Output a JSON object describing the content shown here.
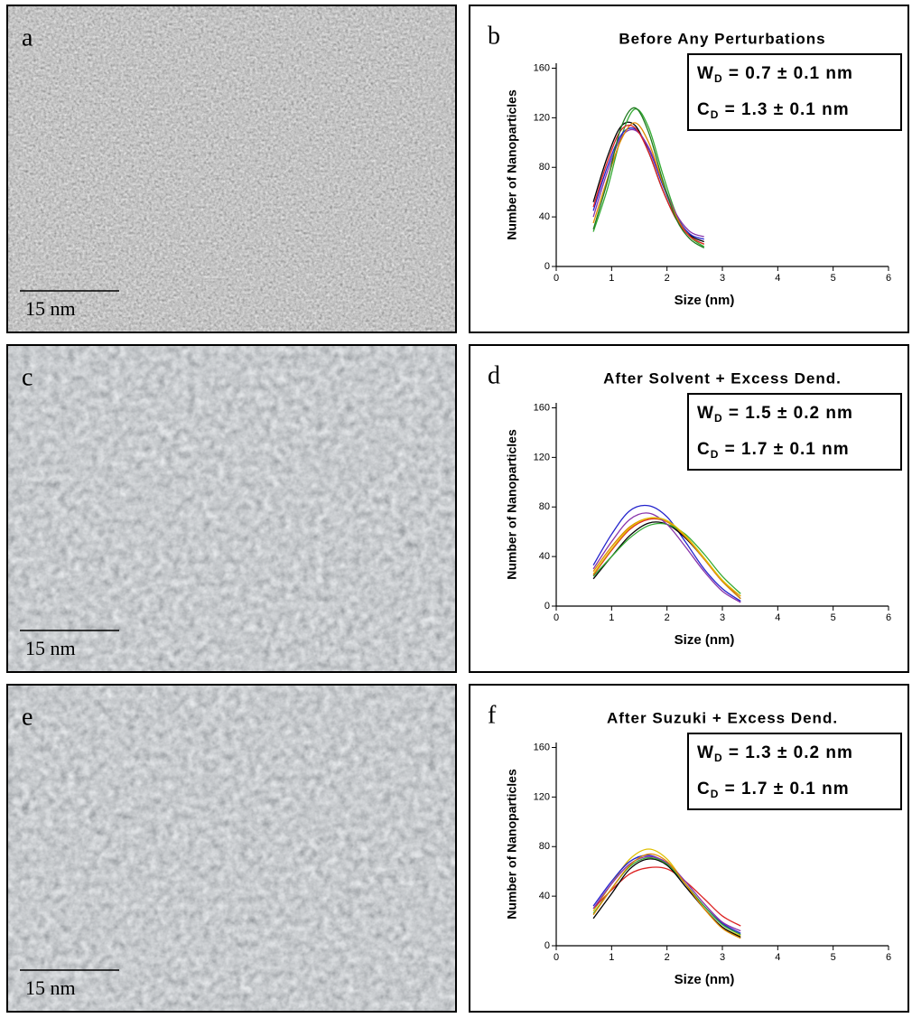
{
  "images": [
    {
      "label": "a",
      "scale_bar": "15 nm"
    },
    {
      "label": "c",
      "scale_bar": "15 nm"
    },
    {
      "label": "e",
      "scale_bar": "15 nm"
    }
  ],
  "chart_data": [
    {
      "type": "line",
      "panel_label": "b",
      "title": "Before Any Perturbations",
      "x_label": "Size (nm)",
      "y_label": "Number of Nanoparticles",
      "annotation": [
        {
          "main": "W",
          "sub": "D",
          "rest": " = 0.7 ± 0.1 nm"
        },
        {
          "main": "C",
          "sub": "D",
          "rest": " = 1.3 ± 0.1 nm"
        }
      ],
      "xlim": [
        0,
        6
      ],
      "xticks": [
        0,
        1,
        2,
        3,
        4,
        5,
        6
      ],
      "ylim": [
        0,
        164
      ],
      "yticks": [
        0,
        40,
        80,
        120,
        160
      ],
      "x": [
        0.67,
        0.92,
        1.17,
        1.42,
        1.67,
        1.92,
        2.17,
        2.42,
        2.67
      ],
      "series": [
        {
          "color": "#000000",
          "values": [
            52,
            88,
            113,
            114,
            92,
            62,
            38,
            25,
            20
          ]
        },
        {
          "color": "#33aa33",
          "values": [
            28,
            62,
            104,
            127,
            112,
            75,
            42,
            24,
            16
          ]
        },
        {
          "color": "#2222cc",
          "values": [
            45,
            80,
            106,
            111,
            95,
            66,
            40,
            26,
            22
          ]
        },
        {
          "color": "#8833aa",
          "values": [
            40,
            76,
            104,
            110,
            96,
            68,
            42,
            28,
            24
          ]
        },
        {
          "color": "#e08a00",
          "values": [
            35,
            70,
            102,
            116,
            100,
            68,
            40,
            24,
            18
          ]
        },
        {
          "color": "#dd2222",
          "values": [
            48,
            84,
            110,
            112,
            92,
            62,
            38,
            24,
            18
          ]
        },
        {
          "color": "#1f7a1f",
          "values": [
            30,
            68,
            112,
            128,
            108,
            70,
            38,
            22,
            15
          ]
        }
      ]
    },
    {
      "type": "line",
      "panel_label": "d",
      "title": "After Solvent + Excess Dend.",
      "x_label": "Size (nm)",
      "y_label": "Number of Nanoparticles",
      "annotation": [
        {
          "main": "W",
          "sub": "D",
          "rest": " = 1.5 ± 0.2 nm"
        },
        {
          "main": "C",
          "sub": "D",
          "rest": " = 1.7 ± 0.1 nm"
        }
      ],
      "xlim": [
        0,
        6
      ],
      "xticks": [
        0,
        1,
        2,
        3,
        4,
        5,
        6
      ],
      "ylim": [
        0,
        164
      ],
      "yticks": [
        0,
        40,
        80,
        120,
        160
      ],
      "x": [
        0.67,
        1,
        1.33,
        1.67,
        2,
        2.33,
        2.67,
        3,
        3.33
      ],
      "series": [
        {
          "color": "#2222cc",
          "values": [
            33,
            58,
            77,
            81,
            72,
            52,
            30,
            14,
            4
          ]
        },
        {
          "color": "#000000",
          "values": [
            22,
            40,
            57,
            67,
            66,
            55,
            38,
            20,
            6
          ]
        },
        {
          "color": "#dd2222",
          "values": [
            25,
            45,
            62,
            70,
            68,
            56,
            38,
            20,
            8
          ]
        },
        {
          "color": "#e08a00",
          "values": [
            28,
            48,
            64,
            71,
            68,
            56,
            38,
            20,
            6
          ]
        },
        {
          "color": "#33aa33",
          "values": [
            24,
            40,
            55,
            65,
            66,
            58,
            42,
            24,
            10
          ]
        },
        {
          "color": "#8833aa",
          "values": [
            30,
            52,
            70,
            75,
            66,
            48,
            28,
            12,
            3
          ]
        },
        {
          "color": "#e0c000",
          "values": [
            26,
            46,
            63,
            71,
            69,
            57,
            39,
            21,
            8
          ]
        }
      ]
    },
    {
      "type": "line",
      "panel_label": "f",
      "title": "After Suzuki + Excess Dend.",
      "x_label": "Size (nm)",
      "y_label": "Number of Nanoparticles",
      "annotation": [
        {
          "main": "W",
          "sub": "D",
          "rest": " = 1.3 ± 0.2 nm"
        },
        {
          "main": "C",
          "sub": "D",
          "rest": " = 1.7 ± 0.1 nm"
        }
      ],
      "xlim": [
        0,
        6
      ],
      "xticks": [
        0,
        1,
        2,
        3,
        4,
        5,
        6
      ],
      "ylim": [
        0,
        164
      ],
      "yticks": [
        0,
        40,
        80,
        120,
        160
      ],
      "x": [
        0.67,
        1,
        1.33,
        1.67,
        2,
        2.33,
        2.67,
        3,
        3.33
      ],
      "series": [
        {
          "color": "#e0c000",
          "values": [
            28,
            50,
            70,
            78,
            70,
            50,
            30,
            15,
            8
          ]
        },
        {
          "color": "#dd2222",
          "values": [
            30,
            45,
            58,
            63,
            62,
            52,
            38,
            24,
            16
          ]
        },
        {
          "color": "#2222cc",
          "values": [
            32,
            52,
            68,
            73,
            66,
            50,
            32,
            18,
            10
          ]
        },
        {
          "color": "#000000",
          "values": [
            22,
            42,
            62,
            70,
            65,
            48,
            30,
            15,
            7
          ]
        },
        {
          "color": "#33aa33",
          "values": [
            26,
            46,
            64,
            71,
            66,
            50,
            32,
            17,
            9
          ]
        },
        {
          "color": "#8833aa",
          "values": [
            30,
            50,
            66,
            72,
            67,
            52,
            34,
            19,
            12
          ]
        },
        {
          "color": "#e08a00",
          "values": [
            25,
            46,
            65,
            74,
            68,
            50,
            30,
            14,
            6
          ]
        }
      ]
    }
  ]
}
